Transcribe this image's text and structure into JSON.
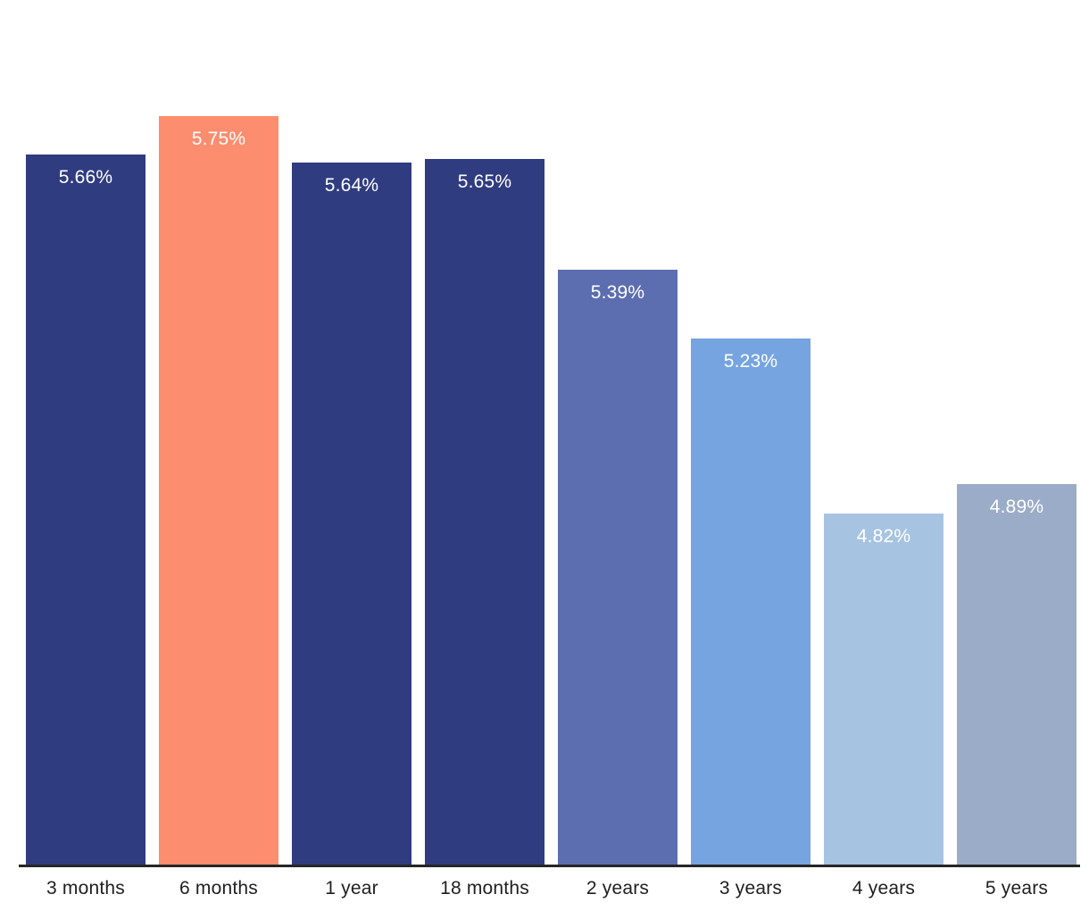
{
  "chart_data": {
    "type": "bar",
    "title": "",
    "xlabel": "",
    "ylabel": "",
    "categories": [
      "3 months",
      "6 months",
      "1 year",
      "18 months",
      "2 years",
      "3 years",
      "4 years",
      "5 years"
    ],
    "values": [
      5.66,
      5.75,
      5.64,
      5.65,
      5.39,
      5.23,
      4.82,
      4.89
    ],
    "labels": [
      "5.66%",
      "5.75%",
      "5.64%",
      "5.65%",
      "5.39%",
      "5.23%",
      "4.82%",
      "4.89%"
    ],
    "bar_colors": [
      "#303C80",
      "#FC8D6E",
      "#303C80",
      "#303C80",
      "#5C6DB0",
      "#75A4E0",
      "#A7C3E2",
      "#9BACC8"
    ],
    "highlighted_category": "6 months",
    "highlight_color": "#FC8D6E",
    "base_color": "#303C80",
    "value_label_color": "#FFFFFF",
    "axis_label_color": "#1F1F1F",
    "axis_line_color": "#262626",
    "background_color": "#FFFFFF",
    "ylim": [
      4.0,
      6.0
    ],
    "grid": false,
    "legend": false,
    "value_format": "percent",
    "value_labels_position": "inside-top",
    "x_axis_visible": true,
    "y_axis_visible": false
  }
}
